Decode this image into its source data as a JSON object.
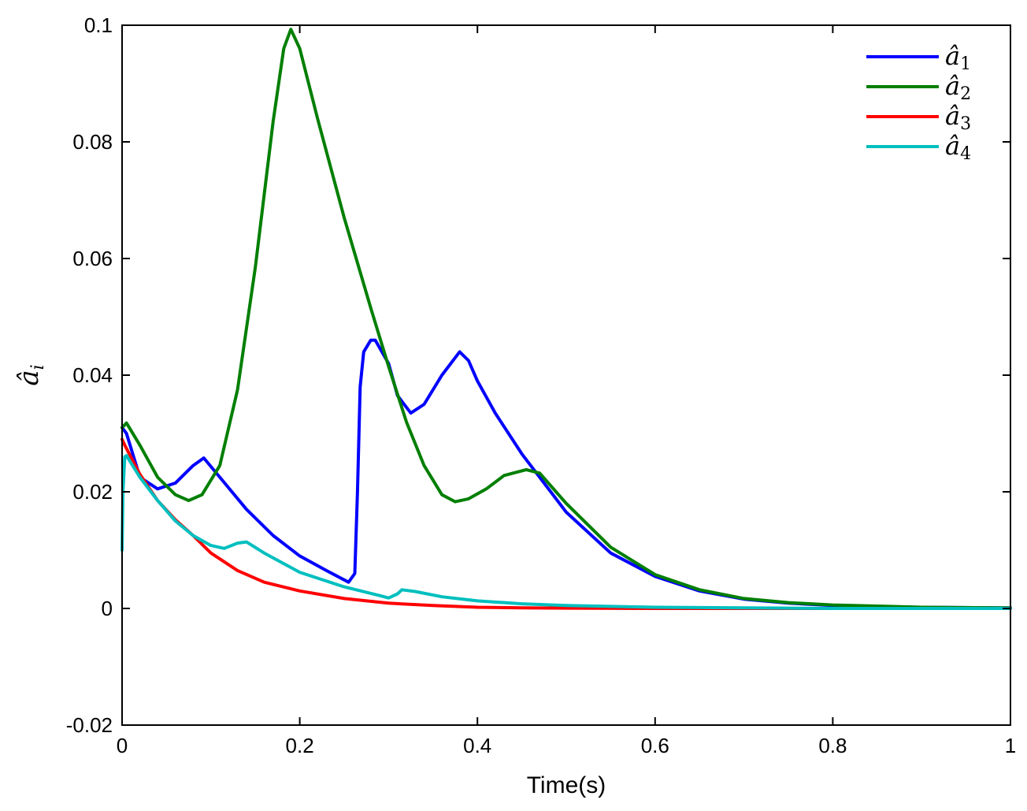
{
  "chart_data": {
    "type": "line",
    "title": "",
    "xlabel": "Time(s)",
    "ylabel": "â",
    "ylabel_sub": "i",
    "xlim": [
      0,
      1
    ],
    "ylim": [
      -0.02,
      0.1
    ],
    "xticks": [
      0,
      0.2,
      0.4,
      0.6,
      0.8,
      1
    ],
    "xtick_labels": [
      "0",
      "0.2",
      "0.4",
      "0.6",
      "0.8",
      "1"
    ],
    "yticks": [
      -0.02,
      0,
      0.02,
      0.04,
      0.06,
      0.08,
      0.1
    ],
    "ytick_labels": [
      "-0.02",
      "0",
      "0.02",
      "0.04",
      "0.06",
      "0.08",
      "0.1"
    ],
    "grid": false,
    "legend_position": "top-right",
    "series": [
      {
        "name": "â",
        "sub": "1",
        "color": "#0000ff",
        "x": [
          0,
          0.005,
          0.02,
          0.04,
          0.06,
          0.08,
          0.092,
          0.11,
          0.14,
          0.17,
          0.2,
          0.23,
          0.255,
          0.262,
          0.265,
          0.268,
          0.272,
          0.28,
          0.285,
          0.3,
          0.31,
          0.325,
          0.34,
          0.36,
          0.38,
          0.39,
          0.4,
          0.42,
          0.45,
          0.5,
          0.55,
          0.6,
          0.65,
          0.7,
          0.75,
          0.8,
          0.85,
          0.9,
          1.0
        ],
        "y": [
          0.031,
          0.03,
          0.0225,
          0.0205,
          0.0215,
          0.0245,
          0.0258,
          0.0225,
          0.017,
          0.0125,
          0.009,
          0.0065,
          0.0045,
          0.006,
          0.02,
          0.038,
          0.044,
          0.046,
          0.046,
          0.042,
          0.0365,
          0.0335,
          0.035,
          0.04,
          0.044,
          0.0425,
          0.039,
          0.0335,
          0.0265,
          0.0165,
          0.0095,
          0.0055,
          0.003,
          0.0016,
          0.0009,
          0.0005,
          0.0003,
          0.0002,
          0.0001
        ]
      },
      {
        "name": "â",
        "sub": "2",
        "color": "#007f00",
        "x": [
          0,
          0.005,
          0.02,
          0.04,
          0.06,
          0.075,
          0.09,
          0.11,
          0.13,
          0.15,
          0.17,
          0.182,
          0.19,
          0.2,
          0.22,
          0.25,
          0.28,
          0.3,
          0.32,
          0.34,
          0.36,
          0.375,
          0.39,
          0.41,
          0.43,
          0.455,
          0.47,
          0.5,
          0.55,
          0.6,
          0.65,
          0.7,
          0.75,
          0.8,
          0.85,
          0.9,
          1.0
        ],
        "y": [
          0.031,
          0.0318,
          0.028,
          0.0225,
          0.0195,
          0.0185,
          0.0195,
          0.0245,
          0.0375,
          0.0585,
          0.0835,
          0.096,
          0.0993,
          0.096,
          0.084,
          0.067,
          0.0515,
          0.0415,
          0.032,
          0.0245,
          0.0195,
          0.0183,
          0.0188,
          0.0205,
          0.0228,
          0.0238,
          0.0232,
          0.018,
          0.0105,
          0.0058,
          0.0032,
          0.0017,
          0.001,
          0.0006,
          0.0004,
          0.0002,
          0.0001
        ]
      },
      {
        "name": "â",
        "sub": "3",
        "color": "#ff0000",
        "x": [
          0,
          0.003,
          0.02,
          0.04,
          0.06,
          0.08,
          0.1,
          0.13,
          0.16,
          0.2,
          0.25,
          0.3,
          0.35,
          0.4,
          0.45,
          0.5,
          0.6,
          0.7,
          0.8,
          1.0
        ],
        "y": [
          0.029,
          0.028,
          0.023,
          0.0185,
          0.0152,
          0.0125,
          0.0095,
          0.0065,
          0.0045,
          0.003,
          0.0017,
          0.0009,
          0.0005,
          0.0002,
          0.0001,
          5e-05,
          0.0,
          0.0,
          0.0,
          0.0
        ]
      },
      {
        "name": "â",
        "sub": "4",
        "color": "#00bfbf",
        "x": [
          0,
          0.001,
          0.003,
          0.005,
          0.02,
          0.04,
          0.06,
          0.08,
          0.1,
          0.115,
          0.13,
          0.14,
          0.16,
          0.2,
          0.25,
          0.29,
          0.3,
          0.31,
          0.315,
          0.33,
          0.36,
          0.4,
          0.45,
          0.5,
          0.6,
          0.7,
          0.8,
          1.0
        ],
        "y": [
          0.01,
          0.02,
          0.026,
          0.0262,
          0.0225,
          0.0185,
          0.015,
          0.0125,
          0.0108,
          0.0103,
          0.0112,
          0.0114,
          0.0095,
          0.0062,
          0.0037,
          0.0022,
          0.0018,
          0.0025,
          0.0032,
          0.0029,
          0.002,
          0.0013,
          0.0008,
          0.0005,
          0.0002,
          0.0001,
          0.0,
          0.0
        ]
      }
    ]
  }
}
